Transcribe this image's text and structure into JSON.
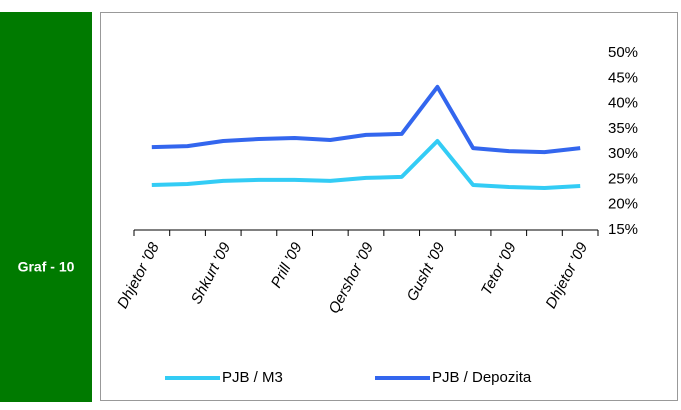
{
  "sidebar_label": "Graf - 10",
  "chart_data": {
    "type": "line",
    "categories": [
      "Dhjetor '08",
      null,
      "Shkurt '09",
      null,
      "Prill '09",
      null,
      "Qershor '09",
      null,
      "Gusht '09",
      null,
      "Tetor '09",
      null,
      "Dhjetor '09"
    ],
    "series": [
      {
        "name": "PJB / M3",
        "color": "#33ccf5",
        "values": [
          23.9,
          24.1,
          24.7,
          24.9,
          24.9,
          24.7,
          25.3,
          25.5,
          32.6,
          23.9,
          23.5,
          23.3,
          23.7
        ]
      },
      {
        "name": "PJB / Depozita",
        "color": "#3366ee",
        "values": [
          31.4,
          31.6,
          32.6,
          33.0,
          33.2,
          32.8,
          33.8,
          34.0,
          43.3,
          31.2,
          30.6,
          30.4,
          31.2
        ]
      }
    ],
    "ylim": [
      15,
      50
    ],
    "yticks": [
      {
        "value": 15,
        "label": "15%"
      },
      {
        "value": 20,
        "label": "20%"
      },
      {
        "value": 25,
        "label": "25%"
      },
      {
        "value": 30,
        "label": "30%"
      },
      {
        "value": 35,
        "label": "35%"
      },
      {
        "value": 40,
        "label": "40%"
      },
      {
        "value": 45,
        "label": "45%"
      },
      {
        "value": 50,
        "label": "50%"
      }
    ],
    "grid": false,
    "legend": "bottom"
  }
}
